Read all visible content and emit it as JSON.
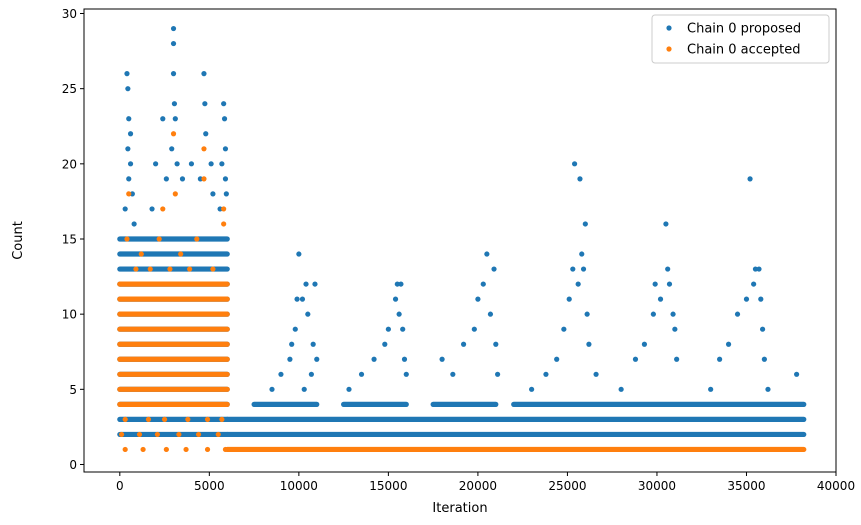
{
  "chart_data": {
    "type": "scatter",
    "title": "",
    "xlabel": "Iteration",
    "ylabel": "Count",
    "xlim": [
      -2000,
      40000
    ],
    "ylim": [
      -0.5,
      30.3
    ],
    "xticks": [
      0,
      5000,
      10000,
      15000,
      20000,
      25000,
      30000,
      35000,
      40000
    ],
    "xtick_labels": [
      "0",
      "5000",
      "10000",
      "15000",
      "20000",
      "25000",
      "30000",
      "35000",
      "40000"
    ],
    "yticks": [
      0,
      5,
      10,
      15,
      20,
      25,
      30
    ],
    "ytick_labels": [
      "0",
      "5",
      "10",
      "15",
      "20",
      "25",
      "30"
    ],
    "grid": false,
    "legend_position": "top-right",
    "series": [
      {
        "name": "Chain 0 proposed",
        "color": "#1f77b4",
        "dense_bands": [
          {
            "x_range": [
              0,
              6000
            ],
            "y_levels": [
              2,
              3,
              4,
              5,
              6,
              7,
              8,
              9,
              10,
              11,
              12,
              13,
              14,
              15
            ]
          },
          {
            "x_range": [
              6000,
              38200
            ],
            "y_levels": [
              2,
              3
            ]
          },
          {
            "x_range": [
              7500,
              11000
            ],
            "y_levels": [
              4
            ]
          },
          {
            "x_range": [
              12500,
              16000
            ],
            "y_levels": [
              4
            ]
          },
          {
            "x_range": [
              17500,
              21000
            ],
            "y_levels": [
              4
            ]
          },
          {
            "x_range": [
              22000,
              38200
            ],
            "y_levels": [
              4
            ]
          }
        ],
        "points": [
          {
            "x": 400,
            "y": 26
          },
          {
            "x": 450,
            "y": 25
          },
          {
            "x": 500,
            "y": 23
          },
          {
            "x": 600,
            "y": 22
          },
          {
            "x": 450,
            "y": 21
          },
          {
            "x": 600,
            "y": 20
          },
          {
            "x": 500,
            "y": 19
          },
          {
            "x": 700,
            "y": 18
          },
          {
            "x": 300,
            "y": 17
          },
          {
            "x": 800,
            "y": 16
          },
          {
            "x": 2400,
            "y": 23
          },
          {
            "x": 2000,
            "y": 20
          },
          {
            "x": 2600,
            "y": 19
          },
          {
            "x": 1800,
            "y": 17
          },
          {
            "x": 3000,
            "y": 29
          },
          {
            "x": 3000,
            "y": 28
          },
          {
            "x": 3000,
            "y": 26
          },
          {
            "x": 3050,
            "y": 24
          },
          {
            "x": 3100,
            "y": 23
          },
          {
            "x": 2900,
            "y": 21
          },
          {
            "x": 3200,
            "y": 20
          },
          {
            "x": 3500,
            "y": 19
          },
          {
            "x": 4000,
            "y": 20
          },
          {
            "x": 4700,
            "y": 26
          },
          {
            "x": 4750,
            "y": 24
          },
          {
            "x": 4800,
            "y": 22
          },
          {
            "x": 5100,
            "y": 20
          },
          {
            "x": 4500,
            "y": 19
          },
          {
            "x": 5200,
            "y": 18
          },
          {
            "x": 5800,
            "y": 24
          },
          {
            "x": 5850,
            "y": 23
          },
          {
            "x": 5900,
            "y": 21
          },
          {
            "x": 5700,
            "y": 20
          },
          {
            "x": 5900,
            "y": 19
          },
          {
            "x": 5950,
            "y": 18
          },
          {
            "x": 5600,
            "y": 17
          },
          {
            "x": 8500,
            "y": 5
          },
          {
            "x": 9000,
            "y": 6
          },
          {
            "x": 9500,
            "y": 7
          },
          {
            "x": 9600,
            "y": 8
          },
          {
            "x": 9800,
            "y": 9
          },
          {
            "x": 9900,
            "y": 11
          },
          {
            "x": 10200,
            "y": 11
          },
          {
            "x": 10400,
            "y": 12
          },
          {
            "x": 10000,
            "y": 14
          },
          {
            "x": 10500,
            "y": 10
          },
          {
            "x": 10800,
            "y": 8
          },
          {
            "x": 10900,
            "y": 12
          },
          {
            "x": 11000,
            "y": 7
          },
          {
            "x": 10700,
            "y": 6
          },
          {
            "x": 10300,
            "y": 5
          },
          {
            "x": 12800,
            "y": 5
          },
          {
            "x": 13500,
            "y": 6
          },
          {
            "x": 14200,
            "y": 7
          },
          {
            "x": 14800,
            "y": 8
          },
          {
            "x": 15000,
            "y": 9
          },
          {
            "x": 15400,
            "y": 11
          },
          {
            "x": 15500,
            "y": 12
          },
          {
            "x": 15700,
            "y": 12
          },
          {
            "x": 15600,
            "y": 10
          },
          {
            "x": 15800,
            "y": 9
          },
          {
            "x": 15900,
            "y": 7
          },
          {
            "x": 16000,
            "y": 6
          },
          {
            "x": 18000,
            "y": 7
          },
          {
            "x": 18600,
            "y": 6
          },
          {
            "x": 19200,
            "y": 8
          },
          {
            "x": 19800,
            "y": 9
          },
          {
            "x": 20000,
            "y": 11
          },
          {
            "x": 20300,
            "y": 12
          },
          {
            "x": 20500,
            "y": 14
          },
          {
            "x": 20900,
            "y": 13
          },
          {
            "x": 20700,
            "y": 10
          },
          {
            "x": 21000,
            "y": 8
          },
          {
            "x": 21100,
            "y": 6
          },
          {
            "x": 23000,
            "y": 5
          },
          {
            "x": 23800,
            "y": 6
          },
          {
            "x": 24400,
            "y": 7
          },
          {
            "x": 24800,
            "y": 9
          },
          {
            "x": 25100,
            "y": 11
          },
          {
            "x": 25400,
            "y": 20
          },
          {
            "x": 25700,
            "y": 19
          },
          {
            "x": 25800,
            "y": 14
          },
          {
            "x": 25300,
            "y": 13
          },
          {
            "x": 25900,
            "y": 13
          },
          {
            "x": 26000,
            "y": 16
          },
          {
            "x": 25600,
            "y": 12
          },
          {
            "x": 26100,
            "y": 10
          },
          {
            "x": 26200,
            "y": 8
          },
          {
            "x": 26600,
            "y": 6
          },
          {
            "x": 28000,
            "y": 5
          },
          {
            "x": 28800,
            "y": 7
          },
          {
            "x": 29300,
            "y": 8
          },
          {
            "x": 29800,
            "y": 10
          },
          {
            "x": 29900,
            "y": 12
          },
          {
            "x": 30200,
            "y": 11
          },
          {
            "x": 30500,
            "y": 16
          },
          {
            "x": 30600,
            "y": 13
          },
          {
            "x": 30700,
            "y": 12
          },
          {
            "x": 30900,
            "y": 10
          },
          {
            "x": 31000,
            "y": 9
          },
          {
            "x": 31100,
            "y": 7
          },
          {
            "x": 33000,
            "y": 5
          },
          {
            "x": 33500,
            "y": 7
          },
          {
            "x": 34000,
            "y": 8
          },
          {
            "x": 34500,
            "y": 10
          },
          {
            "x": 35000,
            "y": 11
          },
          {
            "x": 35200,
            "y": 19
          },
          {
            "x": 35400,
            "y": 12
          },
          {
            "x": 35500,
            "y": 13
          },
          {
            "x": 35700,
            "y": 13
          },
          {
            "x": 35800,
            "y": 11
          },
          {
            "x": 35900,
            "y": 9
          },
          {
            "x": 36000,
            "y": 7
          },
          {
            "x": 36200,
            "y": 5
          },
          {
            "x": 37800,
            "y": 6
          }
        ]
      },
      {
        "name": "Chain 0 accepted",
        "color": "#ff7f0e",
        "dense_bands": [
          {
            "x_range": [
              0,
              6000
            ],
            "y_levels": [
              4,
              5,
              6,
              7,
              8,
              9,
              10,
              11,
              12
            ]
          },
          {
            "x_range": [
              6000,
              38200
            ],
            "y_levels": [
              1
            ]
          }
        ],
        "points": [
          {
            "x": 500,
            "y": 18
          },
          {
            "x": 2400,
            "y": 17
          },
          {
            "x": 3000,
            "y": 22
          },
          {
            "x": 3100,
            "y": 18
          },
          {
            "x": 4700,
            "y": 21
          },
          {
            "x": 4700,
            "y": 19
          },
          {
            "x": 5800,
            "y": 17
          },
          {
            "x": 5800,
            "y": 16
          },
          {
            "x": 400,
            "y": 15
          },
          {
            "x": 1200,
            "y": 14
          },
          {
            "x": 2200,
            "y": 15
          },
          {
            "x": 3400,
            "y": 14
          },
          {
            "x": 4300,
            "y": 15
          },
          {
            "x": 5200,
            "y": 13
          },
          {
            "x": 900,
            "y": 13
          },
          {
            "x": 1700,
            "y": 13
          },
          {
            "x": 2800,
            "y": 13
          },
          {
            "x": 3900,
            "y": 13
          },
          {
            "x": 300,
            "y": 3
          },
          {
            "x": 1600,
            "y": 3
          },
          {
            "x": 2500,
            "y": 3
          },
          {
            "x": 3800,
            "y": 3
          },
          {
            "x": 4900,
            "y": 3
          },
          {
            "x": 5700,
            "y": 3
          },
          {
            "x": 100,
            "y": 2
          },
          {
            "x": 1100,
            "y": 2
          },
          {
            "x": 2100,
            "y": 2
          },
          {
            "x": 3300,
            "y": 2
          },
          {
            "x": 4400,
            "y": 2
          },
          {
            "x": 5500,
            "y": 2
          },
          {
            "x": 300,
            "y": 1
          },
          {
            "x": 1300,
            "y": 1
          },
          {
            "x": 2600,
            "y": 1
          },
          {
            "x": 3700,
            "y": 1
          },
          {
            "x": 4900,
            "y": 1
          },
          {
            "x": 5900,
            "y": 1
          }
        ]
      }
    ]
  }
}
